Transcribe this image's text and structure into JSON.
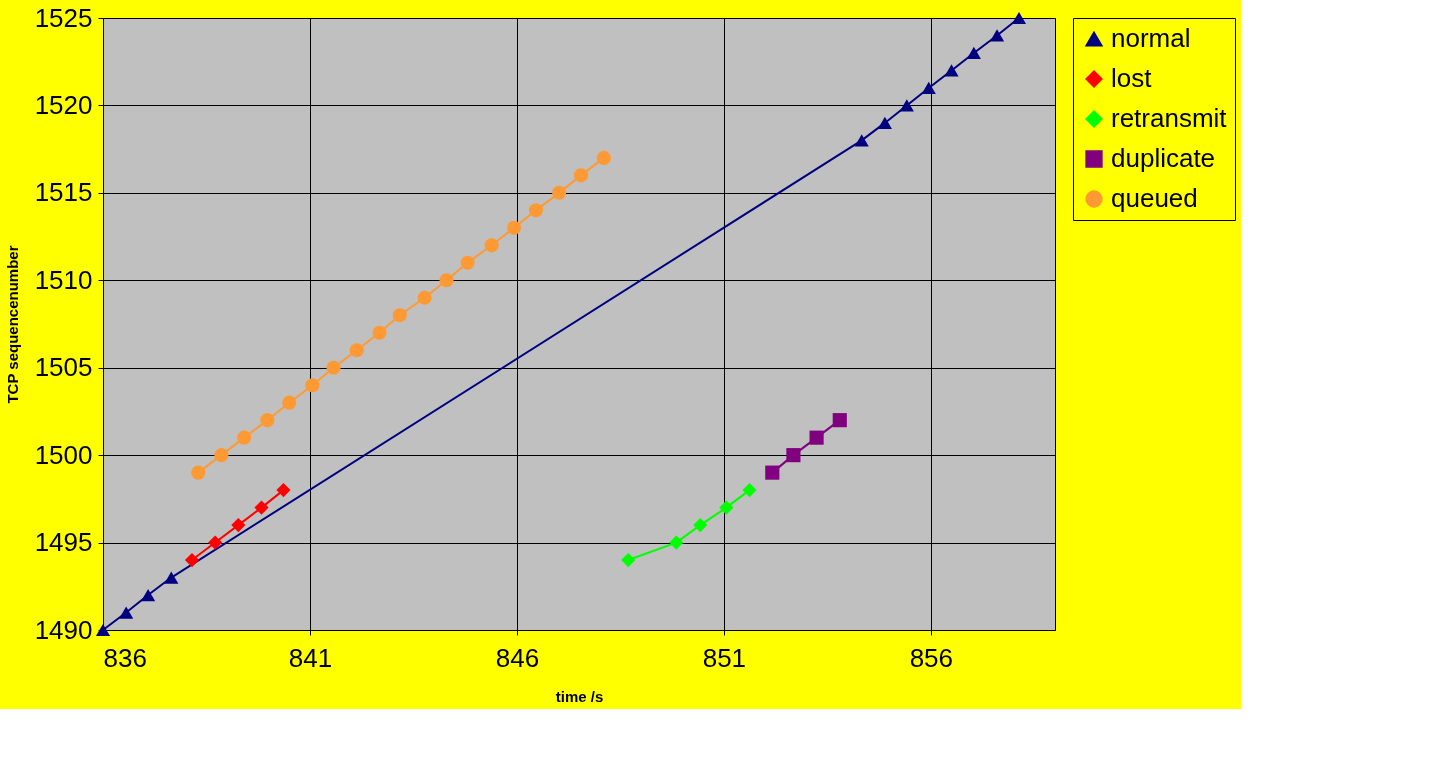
{
  "chart_data": {
    "type": "line",
    "xlabel": "time /s",
    "ylabel": "TCP sequencenumber",
    "xlim": [
      836,
      859
    ],
    "xticks": [
      836,
      841,
      846,
      851,
      856
    ],
    "ylim": [
      1490,
      1525
    ],
    "yticks": [
      1490,
      1495,
      1500,
      1505,
      1510,
      1515,
      1520,
      1525
    ],
    "grid": true,
    "legend": "right",
    "line_style": "solid",
    "series": [
      {
        "name": "normal",
        "color": "#000080",
        "marker": "triangle",
        "x": [
          836,
          836.56,
          837.09,
          837.65,
          854.33,
          854.89,
          855.42,
          855.95,
          856.5,
          857.04,
          857.6,
          858.13
        ],
        "values": [
          1490,
          1491,
          1492,
          1493,
          1518,
          1519,
          1520,
          1521,
          1522,
          1523,
          1524,
          1525
        ]
      },
      {
        "name": "lost",
        "color": "#ff0000",
        "marker": "diamond",
        "x": [
          838.15,
          838.71,
          839.27,
          839.83,
          840.36
        ],
        "values": [
          1494,
          1495,
          1496,
          1497,
          1498
        ]
      },
      {
        "name": "retransmit",
        "color": "#00ff00",
        "marker": "diamond",
        "x": [
          848.69,
          849.85,
          850.43,
          851.06,
          851.62
        ],
        "values": [
          1494,
          1495,
          1496,
          1497,
          1498
        ]
      },
      {
        "name": "duplicate",
        "color": "#800080",
        "marker": "square",
        "x": [
          852.17,
          852.68,
          853.24,
          853.8
        ],
        "values": [
          1499,
          1500,
          1501,
          1502
        ]
      },
      {
        "name": "queued",
        "color": "#ff9933",
        "marker": "circle",
        "x": [
          838.3,
          838.86,
          839.41,
          839.97,
          840.5,
          841.06,
          841.57,
          842.13,
          842.68,
          843.17,
          843.77,
          844.3,
          844.81,
          845.39,
          845.93,
          846.46,
          847.02,
          847.55,
          848.1
        ],
        "values": [
          1499,
          1500,
          1501,
          1502,
          1503,
          1504,
          1505,
          1506,
          1507,
          1508,
          1509,
          1510,
          1511,
          1512,
          1513,
          1514,
          1515,
          1516,
          1517
        ]
      }
    ]
  }
}
